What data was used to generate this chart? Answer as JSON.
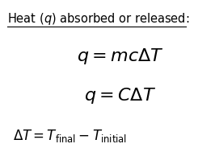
{
  "title_text": "Heat ($q$) absorbed or released:",
  "formula1": "$q = mc\\Delta T$",
  "formula2": "$q = C\\Delta T$",
  "formula3": "$\\Delta T = T_{\\mathrm{final}} - T_{\\mathrm{initial}}$",
  "bg_color": "#ffffff",
  "text_color": "#000000",
  "title_fontsize": 10.5,
  "formula_fontsize": 16,
  "formula3_fontsize": 12
}
